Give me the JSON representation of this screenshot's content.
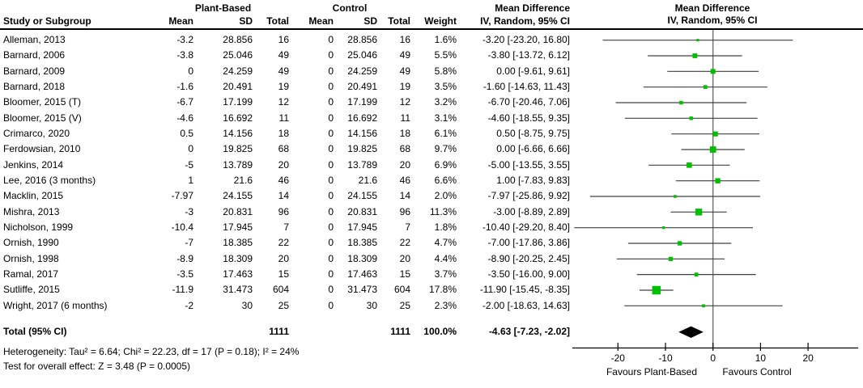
{
  "table": {
    "group_headers": {
      "plant_based": "Plant-Based",
      "control": "Control",
      "mean_difference": "Mean Difference"
    },
    "col_headers": {
      "study": "Study or Subgroup",
      "mean": "Mean",
      "sd": "SD",
      "total": "Total",
      "weight": "Weight",
      "ci": "IV, Random, 95% CI"
    },
    "total_row": {
      "label": "Total (95% CI)",
      "pb_total": "1111",
      "c_total": "1111",
      "weight": "100.0%",
      "ci": "-4.63 [-7.23, -2.02]"
    }
  },
  "plot_header": {
    "line1": "Mean Difference",
    "line2": "IV, Random, 95% CI"
  },
  "footer": {
    "heterogeneity": "Heterogeneity: Tau² = 6.64; Chi² = 22.23, df = 17 (P = 0.18); I² = 24%",
    "overall_effect": "Test for overall effect: Z = 3.48 (P = 0.0005)"
  },
  "chart_data": {
    "type": "forest",
    "title": "Mean Difference",
    "subtitle": "IV, Random, 95% CI",
    "xlim": [
      -29.6,
      30.5
    ],
    "ticks": [
      -20,
      -10,
      0,
      10,
      20
    ],
    "favours_left": "Favours Plant-Based",
    "favours_right": "Favours Control",
    "marker_color": "#00C000",
    "ci_line_color": "#404040",
    "zero_line_color": "#707070",
    "diamond_color": "#000000",
    "studies": [
      {
        "name": "Alleman, 2013",
        "pb_mean": "-3.2",
        "pb_sd": "28.856",
        "pb_total": "16",
        "c_mean": "0",
        "c_sd": "28.856",
        "c_total": "16",
        "weight_label": "1.6%",
        "md_ci": "-3.20 [-23.20, 16.80]",
        "md": -3.2,
        "lo": -23.2,
        "hi": 16.8,
        "weight": 1.6
      },
      {
        "name": "Barnard, 2006",
        "pb_mean": "-3.8",
        "pb_sd": "25.046",
        "pb_total": "49",
        "c_mean": "0",
        "c_sd": "25.046",
        "c_total": "49",
        "weight_label": "5.5%",
        "md_ci": "-3.80 [-13.72, 6.12]",
        "md": -3.8,
        "lo": -13.72,
        "hi": 6.12,
        "weight": 5.5
      },
      {
        "name": "Barnard, 2009",
        "pb_mean": "0",
        "pb_sd": "24.259",
        "pb_total": "49",
        "c_mean": "0",
        "c_sd": "24.259",
        "c_total": "49",
        "weight_label": "5.8%",
        "md_ci": "0.00 [-9.61, 9.61]",
        "md": 0.0,
        "lo": -9.61,
        "hi": 9.61,
        "weight": 5.8
      },
      {
        "name": "Barnard, 2018",
        "pb_mean": "-1.6",
        "pb_sd": "20.491",
        "pb_total": "19",
        "c_mean": "0",
        "c_sd": "20.491",
        "c_total": "19",
        "weight_label": "3.5%",
        "md_ci": "-1.60 [-14.63, 11.43]",
        "md": -1.6,
        "lo": -14.63,
        "hi": 11.43,
        "weight": 3.5
      },
      {
        "name": "Bloomer, 2015 (T)",
        "pb_mean": "-6.7",
        "pb_sd": "17.199",
        "pb_total": "12",
        "c_mean": "0",
        "c_sd": "17.199",
        "c_total": "12",
        "weight_label": "3.2%",
        "md_ci": "-6.70 [-20.46, 7.06]",
        "md": -6.7,
        "lo": -20.46,
        "hi": 7.06,
        "weight": 3.2
      },
      {
        "name": "Bloomer, 2015 (V)",
        "pb_mean": "-4.6",
        "pb_sd": "16.692",
        "pb_total": "11",
        "c_mean": "0",
        "c_sd": "16.692",
        "c_total": "11",
        "weight_label": "3.1%",
        "md_ci": "-4.60 [-18.55, 9.35]",
        "md": -4.6,
        "lo": -18.55,
        "hi": 9.35,
        "weight": 3.1
      },
      {
        "name": "Crimarco, 2020",
        "pb_mean": "0.5",
        "pb_sd": "14.156",
        "pb_total": "18",
        "c_mean": "0",
        "c_sd": "14.156",
        "c_total": "18",
        "weight_label": "6.1%",
        "md_ci": "0.50 [-8.75, 9.75]",
        "md": 0.5,
        "lo": -8.75,
        "hi": 9.75,
        "weight": 6.1
      },
      {
        "name": "Ferdowsian, 2010",
        "pb_mean": "0",
        "pb_sd": "19.825",
        "pb_total": "68",
        "c_mean": "0",
        "c_sd": "19.825",
        "c_total": "68",
        "weight_label": "9.7%",
        "md_ci": "0.00 [-6.66, 6.66]",
        "md": 0.0,
        "lo": -6.66,
        "hi": 6.66,
        "weight": 9.7
      },
      {
        "name": "Jenkins, 2014",
        "pb_mean": "-5",
        "pb_sd": "13.789",
        "pb_total": "20",
        "c_mean": "0",
        "c_sd": "13.789",
        "c_total": "20",
        "weight_label": "6.9%",
        "md_ci": "-5.00 [-13.55, 3.55]",
        "md": -5.0,
        "lo": -13.55,
        "hi": 3.55,
        "weight": 6.9
      },
      {
        "name": "Lee, 2016 (3 months)",
        "pb_mean": "1",
        "pb_sd": "21.6",
        "pb_total": "46",
        "c_mean": "0",
        "c_sd": "21.6",
        "c_total": "46",
        "weight_label": "6.6%",
        "md_ci": "1.00 [-7.83, 9.83]",
        "md": 1.0,
        "lo": -7.83,
        "hi": 9.83,
        "weight": 6.6
      },
      {
        "name": "Macklin, 2015",
        "pb_mean": "-7.97",
        "pb_sd": "24.155",
        "pb_total": "14",
        "c_mean": "0",
        "c_sd": "24.155",
        "c_total": "14",
        "weight_label": "2.0%",
        "md_ci": "-7.97 [-25.86, 9.92]",
        "md": -7.97,
        "lo": -25.86,
        "hi": 9.92,
        "weight": 2.0
      },
      {
        "name": "Mishra, 2013",
        "pb_mean": "-3",
        "pb_sd": "20.831",
        "pb_total": "96",
        "c_mean": "0",
        "c_sd": "20.831",
        "c_total": "96",
        "weight_label": "11.3%",
        "md_ci": "-3.00 [-8.89, 2.89]",
        "md": -3.0,
        "lo": -8.89,
        "hi": 2.89,
        "weight": 11.3
      },
      {
        "name": "Nicholson, 1999",
        "pb_mean": "-10.4",
        "pb_sd": "17.945",
        "pb_total": "7",
        "c_mean": "0",
        "c_sd": "17.945",
        "c_total": "7",
        "weight_label": "1.8%",
        "md_ci": "-10.40 [-29.20, 8.40]",
        "md": -10.4,
        "lo": -29.2,
        "hi": 8.4,
        "weight": 1.8
      },
      {
        "name": "Ornish, 1990",
        "pb_mean": "-7",
        "pb_sd": "18.385",
        "pb_total": "22",
        "c_mean": "0",
        "c_sd": "18.385",
        "c_total": "22",
        "weight_label": "4.7%",
        "md_ci": "-7.00 [-17.86, 3.86]",
        "md": -7.0,
        "lo": -17.86,
        "hi": 3.86,
        "weight": 4.7
      },
      {
        "name": "Ornish, 1998",
        "pb_mean": "-8.9",
        "pb_sd": "18.309",
        "pb_total": "20",
        "c_mean": "0",
        "c_sd": "18.309",
        "c_total": "20",
        "weight_label": "4.4%",
        "md_ci": "-8.90 [-20.25, 2.45]",
        "md": -8.9,
        "lo": -20.25,
        "hi": 2.45,
        "weight": 4.4
      },
      {
        "name": "Ramal, 2017",
        "pb_mean": "-3.5",
        "pb_sd": "17.463",
        "pb_total": "15",
        "c_mean": "0",
        "c_sd": "17.463",
        "c_total": "15",
        "weight_label": "3.7%",
        "md_ci": "-3.50 [-16.00, 9.00]",
        "md": -3.5,
        "lo": -16.0,
        "hi": 9.0,
        "weight": 3.7
      },
      {
        "name": "Sutliffe, 2015",
        "pb_mean": "-11.9",
        "pb_sd": "31.473",
        "pb_total": "604",
        "c_mean": "0",
        "c_sd": "31.473",
        "c_total": "604",
        "weight_label": "17.8%",
        "md_ci": "-11.90 [-15.45, -8.35]",
        "md": -11.9,
        "lo": -15.45,
        "hi": -8.35,
        "weight": 17.8
      },
      {
        "name": "Wright, 2017 (6 months)",
        "pb_mean": "-2",
        "pb_sd": "30",
        "pb_total": "25",
        "c_mean": "0",
        "c_sd": "30",
        "c_total": "25",
        "weight_label": "2.3%",
        "md_ci": "-2.00 [-18.63, 14.63]",
        "md": -2.0,
        "lo": -18.63,
        "hi": 14.63,
        "weight": 2.3
      }
    ],
    "total": {
      "md": -4.63,
      "lo": -7.23,
      "hi": -2.02
    }
  }
}
